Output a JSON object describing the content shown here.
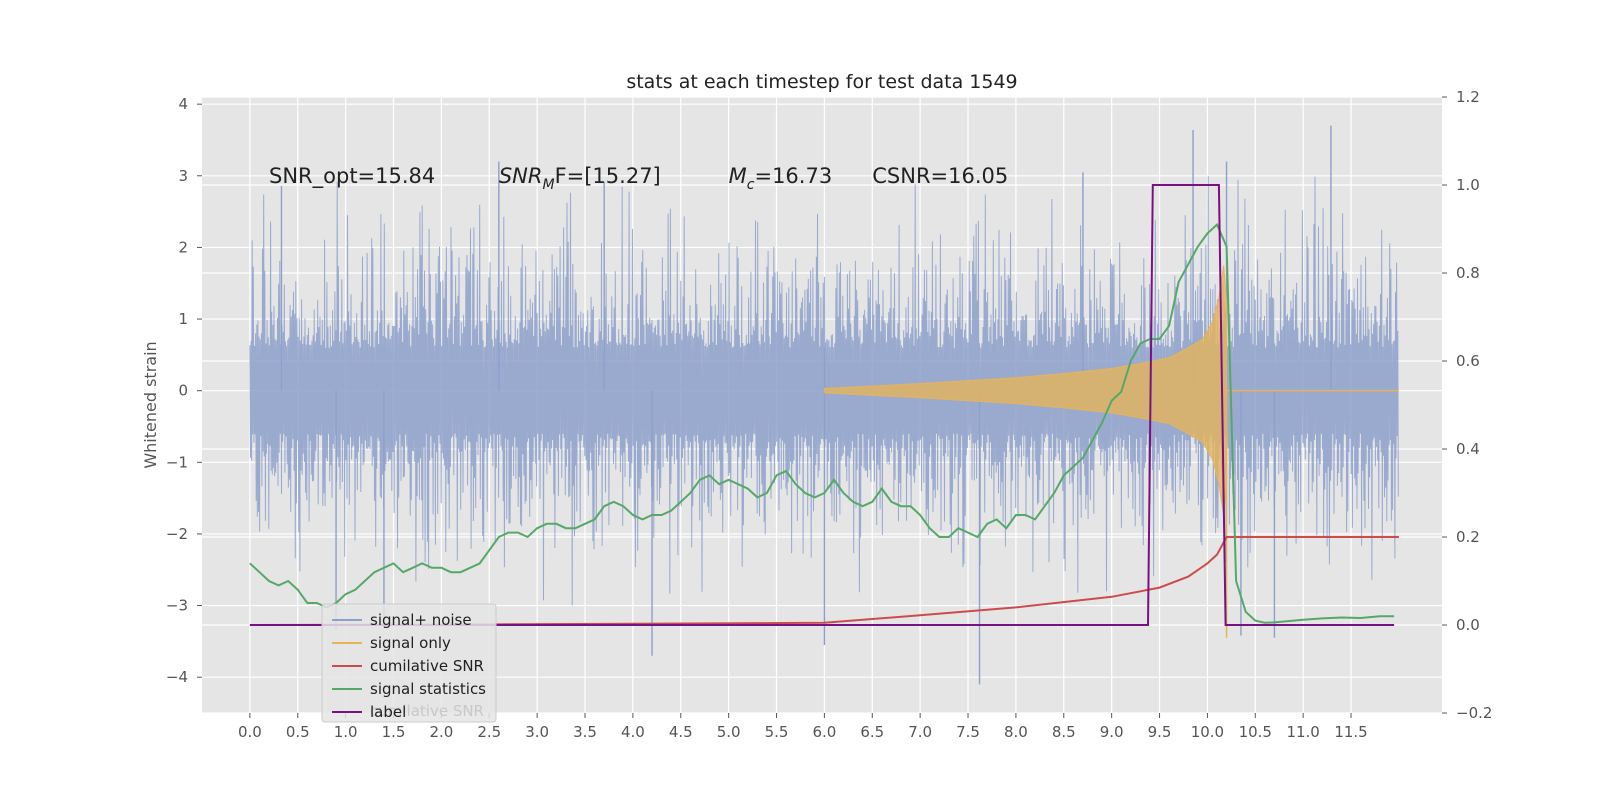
{
  "chart_data": {
    "type": "line",
    "title": "stats at each timestep for test data 1549",
    "ylabel": "Whitened strain",
    "xlim": [
      -0.5,
      12.45
    ],
    "ylim": [
      -4.5,
      4.1
    ],
    "y2lim": [
      -0.2,
      1.2
    ],
    "x_ticks": [
      0.0,
      0.5,
      1.0,
      1.5,
      2.0,
      2.5,
      3.0,
      3.5,
      4.0,
      4.5,
      5.0,
      5.5,
      6.0,
      6.5,
      7.0,
      7.5,
      8.0,
      8.5,
      9.0,
      9.5,
      10.0,
      10.5,
      11.0,
      11.5
    ],
    "x_tick_labels": [
      "0.0",
      "0.5",
      "1.0",
      "1.5",
      "2.0",
      "2.5",
      "3.0",
      "3.5",
      "4.0",
      "4.5",
      "5.0",
      "5.5",
      "6.0",
      "6.5",
      "7.0",
      "7.5",
      "8.0",
      "8.5",
      "9.0",
      "9.5",
      "10.0",
      "10.5",
      "11.0",
      "11.5"
    ],
    "y_ticks": [
      4,
      3,
      2,
      1,
      0,
      -1,
      -2,
      -3,
      -4
    ],
    "y_tick_labels": [
      "4",
      "3",
      "2",
      "1",
      "0",
      "−1",
      "−2",
      "−3",
      "−4"
    ],
    "y2_ticks": [
      1.2,
      1.0,
      0.8,
      0.6,
      0.4,
      0.2,
      0.0,
      -0.2
    ],
    "y2_tick_labels": [
      "1.2",
      "1.0",
      "0.8",
      "0.6",
      "0.4",
      "0.2",
      "0.0",
      "−0.2"
    ],
    "grid": true,
    "legend_position": "lower-left",
    "annotations": [
      {
        "text": "SNR_opt=15.84",
        "x": 0.2,
        "y": 2.9
      },
      {
        "text": "SNR",
        "sub": "M",
        "text2": "F=[15.27]",
        "italic": true,
        "x": 2.6,
        "y": 2.9
      },
      {
        "text": "M",
        "sub": "c",
        "text2": "=16.73",
        "italic": true,
        "x": 5.0,
        "y": 2.9
      },
      {
        "text": "CSNR=16.05",
        "x": 6.5,
        "y": 2.9
      }
    ],
    "legend_ghost_text": "cumilative SNR",
    "series": [
      {
        "name": "signal+ noise",
        "axis": "left",
        "color": "#8da0cb",
        "style": "noise",
        "x_range": [
          0.0,
          12.0
        ],
        "upper_typical": 2.2,
        "lower_typical": -2.2,
        "spikes": [
          {
            "x": 0.33,
            "y": 2.86
          },
          {
            "x": 2.6,
            "y": 3.2
          },
          {
            "x": 6.0,
            "y": 0.6
          },
          {
            "x": 9.85,
            "y": 3.64
          },
          {
            "x": 11.29,
            "y": 3.7
          },
          {
            "x": 10.2,
            "y": 3.2
          },
          {
            "x": 4.2,
            "y": -3.7
          },
          {
            "x": 6.0,
            "y": -3.55
          },
          {
            "x": 7.62,
            "y": -4.1
          },
          {
            "x": 10.35,
            "y": -3.42
          },
          {
            "x": 1.4,
            "y": -3.3
          },
          {
            "x": 0.9,
            "y": -3.35
          },
          {
            "x": 10.7,
            "y": -3.45
          },
          {
            "x": 3.7,
            "y": 2.92
          },
          {
            "x": 8.7,
            "y": 3.05
          }
        ]
      },
      {
        "name": "signal only",
        "axis": "left",
        "color": "#e5b45a",
        "envelope": {
          "x": [
            6.0,
            7.0,
            8.0,
            8.5,
            9.0,
            9.3,
            9.6,
            9.8,
            9.95,
            10.05,
            10.12,
            10.17,
            10.2
          ],
          "amp": [
            0.03,
            0.1,
            0.18,
            0.24,
            0.31,
            0.38,
            0.46,
            0.6,
            0.72,
            0.95,
            1.3,
            1.75,
            1.2
          ]
        },
        "after": {
          "x": [
            10.2,
            12.0
          ],
          "y": 0.0
        },
        "spike": {
          "x": 10.2,
          "y": -3.45
        }
      },
      {
        "name": "cumilative SNR",
        "axis": "right",
        "color": "#cc4c4c",
        "x": [
          0.0,
          2.0,
          4.0,
          6.0,
          7.0,
          8.0,
          9.0,
          9.5,
          9.8,
          10.0,
          10.1,
          10.15,
          10.2,
          12.0
        ],
        "y": [
          0.0,
          0.001,
          0.003,
          0.005,
          0.022,
          0.04,
          0.064,
          0.085,
          0.11,
          0.14,
          0.16,
          0.18,
          0.2,
          0.2
        ]
      },
      {
        "name": "signal statistics",
        "axis": "right",
        "color": "#55a868",
        "x": [
          0.0,
          0.1,
          0.2,
          0.3,
          0.4,
          0.5,
          0.6,
          0.7,
          0.8,
          0.9,
          1.0,
          1.1,
          1.2,
          1.3,
          1.4,
          1.5,
          1.6,
          1.7,
          1.8,
          1.9,
          2.0,
          2.1,
          2.2,
          2.3,
          2.4,
          2.5,
          2.6,
          2.7,
          2.8,
          2.9,
          3.0,
          3.1,
          3.2,
          3.3,
          3.4,
          3.5,
          3.6,
          3.7,
          3.8,
          3.9,
          4.0,
          4.1,
          4.2,
          4.3,
          4.4,
          4.5,
          4.6,
          4.7,
          4.8,
          4.9,
          5.0,
          5.1,
          5.2,
          5.3,
          5.4,
          5.5,
          5.6,
          5.7,
          5.8,
          5.9,
          6.0,
          6.1,
          6.2,
          6.3,
          6.4,
          6.5,
          6.6,
          6.7,
          6.8,
          6.9,
          7.0,
          7.1,
          7.2,
          7.3,
          7.4,
          7.5,
          7.6,
          7.7,
          7.8,
          7.9,
          8.0,
          8.1,
          8.2,
          8.3,
          8.4,
          8.5,
          8.6,
          8.7,
          8.8,
          8.9,
          9.0,
          9.1,
          9.2,
          9.3,
          9.4,
          9.5,
          9.6,
          9.7,
          9.8,
          9.9,
          10.0,
          10.1,
          10.2,
          10.3,
          10.4,
          10.5,
          10.6,
          10.7,
          10.8,
          10.9,
          11.0,
          11.2,
          11.4,
          11.6,
          11.8,
          11.95
        ],
        "y": [
          0.14,
          0.12,
          0.1,
          0.09,
          0.1,
          0.08,
          0.05,
          0.05,
          0.04,
          0.05,
          0.07,
          0.08,
          0.1,
          0.12,
          0.13,
          0.14,
          0.12,
          0.13,
          0.14,
          0.13,
          0.13,
          0.12,
          0.12,
          0.13,
          0.14,
          0.17,
          0.2,
          0.21,
          0.21,
          0.2,
          0.22,
          0.23,
          0.23,
          0.22,
          0.22,
          0.23,
          0.24,
          0.27,
          0.28,
          0.27,
          0.25,
          0.24,
          0.25,
          0.25,
          0.26,
          0.28,
          0.3,
          0.33,
          0.34,
          0.32,
          0.33,
          0.32,
          0.31,
          0.29,
          0.3,
          0.34,
          0.35,
          0.32,
          0.3,
          0.29,
          0.3,
          0.33,
          0.3,
          0.28,
          0.27,
          0.28,
          0.31,
          0.28,
          0.27,
          0.27,
          0.25,
          0.22,
          0.2,
          0.2,
          0.22,
          0.21,
          0.2,
          0.23,
          0.24,
          0.22,
          0.25,
          0.25,
          0.24,
          0.27,
          0.3,
          0.34,
          0.36,
          0.38,
          0.42,
          0.46,
          0.51,
          0.53,
          0.6,
          0.64,
          0.65,
          0.65,
          0.68,
          0.78,
          0.82,
          0.86,
          0.89,
          0.91,
          0.86,
          0.1,
          0.03,
          0.01,
          0.005,
          0.006,
          0.008,
          0.01,
          0.012,
          0.015,
          0.017,
          0.016,
          0.02,
          0.02
        ]
      },
      {
        "name": "label",
        "axis": "right",
        "color": "#7a1182",
        "x": [
          0.0,
          9.38,
          9.43,
          10.12,
          10.19,
          11.95
        ],
        "y": [
          0.0,
          0.0,
          1.0,
          1.0,
          0.0,
          0.0
        ]
      }
    ]
  }
}
